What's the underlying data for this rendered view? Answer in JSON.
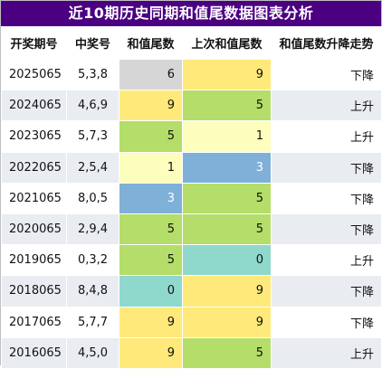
{
  "title": "近10期历史同期和值尾数据图表分析",
  "columns": [
    "开奖期号",
    "中奖号",
    "和值尾数",
    "上次和值尾数",
    "和值尾数升降走势"
  ],
  "rows": [
    {
      "period": "2025065",
      "numbers": "5,3,8",
      "tail": "6",
      "tail_color": "gray",
      "prev_tail": "9",
      "prev_color": "yellow",
      "trend": "下降"
    },
    {
      "period": "2024065",
      "numbers": "4,6,9",
      "tail": "9",
      "tail_color": "yellow",
      "prev_tail": "5",
      "prev_color": "green",
      "trend": "上升"
    },
    {
      "period": "2023065",
      "numbers": "5,7,3",
      "tail": "5",
      "tail_color": "green",
      "prev_tail": "1",
      "prev_color": "lightyellow",
      "trend": "上升"
    },
    {
      "period": "2022065",
      "numbers": "2,5,4",
      "tail": "1",
      "tail_color": "lightyellow",
      "prev_tail": "3",
      "prev_color": "blue",
      "trend": "下降"
    },
    {
      "period": "2021065",
      "numbers": "8,0,5",
      "tail": "3",
      "tail_color": "blue",
      "prev_tail": "5",
      "prev_color": "green",
      "trend": "下降"
    },
    {
      "period": "2020065",
      "numbers": "2,9,4",
      "tail": "5",
      "tail_color": "green",
      "prev_tail": "5",
      "prev_color": "green",
      "trend": "下降"
    },
    {
      "period": "2019065",
      "numbers": "0,3,2",
      "tail": "5",
      "tail_color": "green",
      "prev_tail": "0",
      "prev_color": "teal",
      "trend": "上升"
    },
    {
      "period": "2018065",
      "numbers": "8,4,8",
      "tail": "0",
      "tail_color": "teal",
      "prev_tail": "9",
      "prev_color": "yellow",
      "trend": "下降"
    },
    {
      "period": "2017065",
      "numbers": "5,7,7",
      "tail": "9",
      "tail_color": "yellow",
      "prev_tail": "9",
      "prev_color": "yellow",
      "trend": "下降"
    },
    {
      "period": "2016065",
      "numbers": "4,5,0",
      "tail": "9",
      "tail_color": "yellow",
      "prev_tail": "5",
      "prev_color": "green",
      "trend": "上升"
    }
  ],
  "colors": {
    "title_bg": "#4b0082",
    "gray": "#d6d6d6",
    "yellow": "#ffe97a",
    "green": "#b4dd69",
    "lightyellow": "#fdfdbd",
    "blue": "#7fb0d8",
    "teal": "#8ed8cc",
    "stripe": "#e9edf1"
  }
}
